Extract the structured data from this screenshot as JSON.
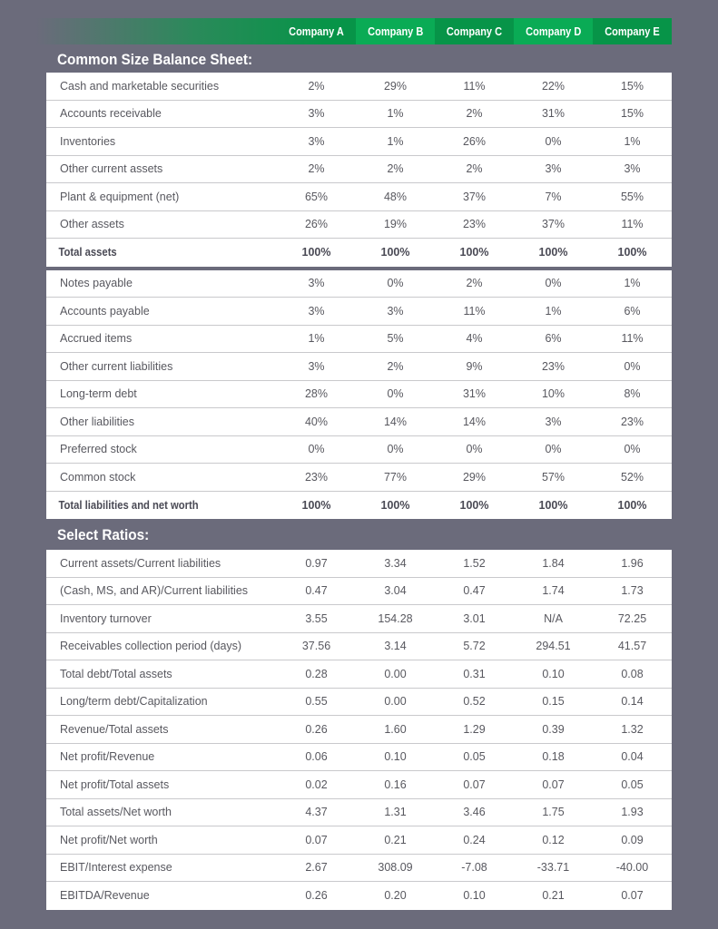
{
  "header": {
    "companies": [
      "Company A",
      "Company B",
      "Company C",
      "Company D",
      "Company E"
    ]
  },
  "balance": {
    "title": "Common Size Balance Sheet:",
    "assets": [
      {
        "label": "Cash and marketable securities",
        "values": [
          "2%",
          "29%",
          "11%",
          "22%",
          "15%"
        ]
      },
      {
        "label": "Accounts receivable",
        "values": [
          "3%",
          "1%",
          "2%",
          "31%",
          "15%"
        ]
      },
      {
        "label": "Inventories",
        "values": [
          "3%",
          "1%",
          "26%",
          "0%",
          "1%"
        ]
      },
      {
        "label": "Other current assets",
        "values": [
          "2%",
          "2%",
          "2%",
          "3%",
          "3%"
        ]
      },
      {
        "label": "Plant & equipment (net)",
        "values": [
          "65%",
          "48%",
          "37%",
          "7%",
          "55%"
        ]
      },
      {
        "label": "Other assets",
        "values": [
          "26%",
          "19%",
          "23%",
          "37%",
          "11%"
        ]
      },
      {
        "label": "Total assets",
        "values": [
          "100%",
          "100%",
          "100%",
          "100%",
          "100%"
        ],
        "total": true
      }
    ],
    "liabilities": [
      {
        "label": "Notes payable",
        "values": [
          "3%",
          "0%",
          "2%",
          "0%",
          "1%"
        ]
      },
      {
        "label": "Accounts payable",
        "values": [
          "3%",
          "3%",
          "11%",
          "1%",
          "6%"
        ]
      },
      {
        "label": "Accrued items",
        "values": [
          "1%",
          "5%",
          "4%",
          "6%",
          "11%"
        ]
      },
      {
        "label": "Other current liabilities",
        "values": [
          "3%",
          "2%",
          "9%",
          "23%",
          "0%"
        ]
      },
      {
        "label": "Long-term debt",
        "values": [
          "28%",
          "0%",
          "31%",
          "10%",
          "8%"
        ]
      },
      {
        "label": "Other liabilities",
        "values": [
          "40%",
          "14%",
          "14%",
          "3%",
          "23%"
        ]
      },
      {
        "label": "Preferred stock",
        "values": [
          "0%",
          "0%",
          "0%",
          "0%",
          "0%"
        ]
      },
      {
        "label": "Common stock",
        "values": [
          "23%",
          "77%",
          "29%",
          "57%",
          "52%"
        ]
      },
      {
        "label": "Total liabilities and net worth",
        "values": [
          "100%",
          "100%",
          "100%",
          "100%",
          "100%"
        ],
        "total": true
      }
    ]
  },
  "ratios": {
    "title": "Select Ratios:",
    "rows": [
      {
        "label": "Current assets/Current liabilities",
        "values": [
          "0.97",
          "3.34",
          "1.52",
          "1.84",
          "1.96"
        ]
      },
      {
        "label": "(Cash, MS, and AR)/Current liabilities",
        "values": [
          "0.47",
          "3.04",
          "0.47",
          "1.74",
          "1.73"
        ]
      },
      {
        "label": "Inventory turnover",
        "values": [
          "3.55",
          "154.28",
          "3.01",
          "N/A",
          "72.25"
        ]
      },
      {
        "label": "Receivables collection period (days)",
        "values": [
          "37.56",
          "3.14",
          "5.72",
          "294.51",
          "41.57"
        ]
      },
      {
        "label": "Total debt/Total assets",
        "values": [
          "0.28",
          "0.00",
          "0.31",
          "0.10",
          "0.08"
        ]
      },
      {
        "label": "Long/term debt/Capitalization",
        "values": [
          "0.55",
          "0.00",
          "0.52",
          "0.15",
          "0.14"
        ]
      },
      {
        "label": "Revenue/Total assets",
        "values": [
          "0.26",
          "1.60",
          "1.29",
          "0.39",
          "1.32"
        ]
      },
      {
        "label": "Net profit/Revenue",
        "values": [
          "0.06",
          "0.10",
          "0.05",
          "0.18",
          "0.04"
        ]
      },
      {
        "label": "Net profit/Total assets",
        "values": [
          "0.02",
          "0.16",
          "0.07",
          "0.07",
          "0.05"
        ]
      },
      {
        "label": "Total assets/Net worth",
        "values": [
          "4.37",
          "1.31",
          "3.46",
          "1.75",
          "1.93"
        ]
      },
      {
        "label": "Net profit/Net worth",
        "values": [
          "0.07",
          "0.21",
          "0.24",
          "0.12",
          "0.09"
        ]
      },
      {
        "label": "EBIT/Interest expense",
        "values": [
          "2.67",
          "308.09",
          "-7.08",
          "-33.71",
          "-40.00"
        ]
      },
      {
        "label": "EBITDA/Revenue",
        "values": [
          "0.26",
          "0.20",
          "0.10",
          "0.21",
          "0.07"
        ]
      }
    ]
  },
  "colors": {
    "background": "#6b6b7b",
    "header_green": "#079448",
    "header_green_alt": "#0aab55"
  }
}
